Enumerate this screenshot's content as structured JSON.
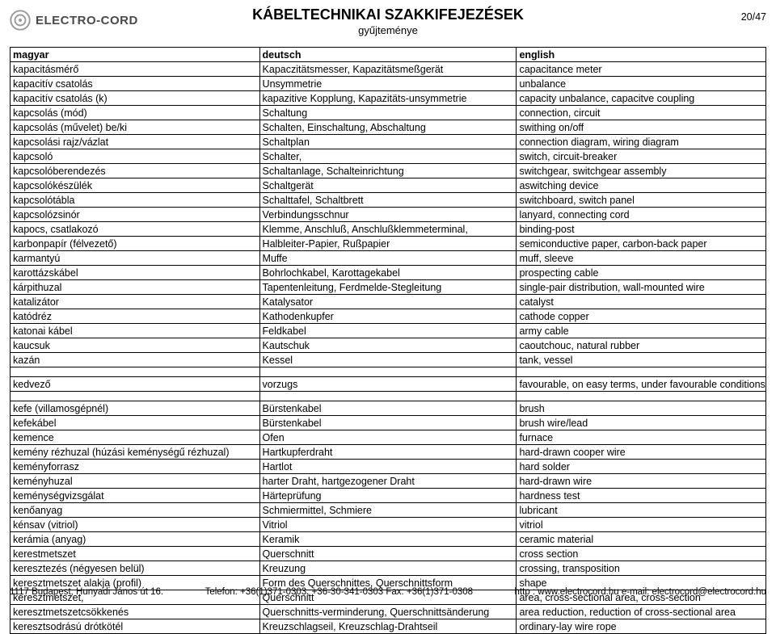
{
  "header": {
    "logo_text": "ELECTRO-CORD",
    "title": "KÁBELTECHNIKAI SZAKKIFEJEZÉSEK",
    "subtitle": "gyűjteménye",
    "page": "20/47"
  },
  "table": {
    "columns": [
      "magyar",
      "deutsch",
      "english"
    ],
    "rows_block1": [
      [
        "kapacitásmérő",
        "Kapaczitätsmesser, Kapazitätsmeßgerät",
        "capacitance meter"
      ],
      [
        "kapacitív csatolás",
        "Unsymmetrie",
        "unbalance"
      ],
      [
        "kapacitív csatolás (k)",
        "kapazitive Kopplung, Kapazitäts-unsymmetrie",
        "capacity unbalance, capacitve coupling"
      ],
      [
        "kapcsolás (mód)",
        "Schaltung",
        "connection, circuit"
      ],
      [
        "kapcsolás (művelet) be/ki",
        "Schalten, Einschaltung, Abschaltung",
        "swithing on/off"
      ],
      [
        "kapcsolási rajz/vázlat",
        "Schaltplan",
        "connection diagram, wiring diagram"
      ],
      [
        "kapcsoló",
        "Schalter,",
        "switch, circuit-breaker"
      ],
      [
        "kapcsolóberendezés",
        "Schaltanlage, Schalteinrichtung",
        "switchgear, switchgear assembly"
      ],
      [
        "kapcsolókészülék",
        "Schaltgerät",
        "aswitching device"
      ],
      [
        "kapcsolótábla",
        "Schalttafel, Schaltbrett",
        "switchboard, switch panel"
      ],
      [
        "kapcsolózsinór",
        "Verbindungsschnur",
        "lanyard, connecting cord"
      ],
      [
        "kapocs, csatlakozó",
        "Klemme, Anschluß, Anschlußklemmeterminal,",
        " binding-post"
      ],
      [
        "karbonpapír (félvezető)",
        "Halbleiter-Papier, Rußpapier",
        "semiconductive paper, carbon-back paper"
      ],
      [
        "karmantyú",
        "Muffe",
        "muff, sleeve"
      ],
      [
        "karottázskábel",
        "Bohrlochkabel, Karottagekabel",
        "prospecting cable"
      ],
      [
        "kárpithuzal",
        "Tapentenleitung, Ferdmelde-Stegleitung",
        "single-pair distribution, wall-mounted wire"
      ],
      [
        "katalizátor",
        "Katalysator",
        "catalyst"
      ],
      [
        "katódréz",
        "Kathodenkupfer",
        "cathode copper"
      ],
      [
        "katonai kábel",
        "Feldkabel",
        "army cable"
      ],
      [
        "kaucsuk",
        "Kautschuk",
        "caoutchouc, natural rubber"
      ],
      [
        "kazán",
        "Kessel",
        "tank, vessel"
      ]
    ],
    "rows_block2": [
      [
        "kedvező",
        "vorzugs",
        "favourable, on easy terms, under favourable conditions"
      ]
    ],
    "rows_block3": [
      [
        "kefe (villamosgépnél)",
        "Bürstenkabel",
        "brush"
      ],
      [
        "kefekábel",
        "Bürstenkabel",
        "brush wire/lead"
      ],
      [
        "kemence",
        "Ofen",
        "furnace"
      ],
      [
        "kemény rézhuzal (húzási keménységű rézhuzal)",
        "Hartkupferdraht",
        "hard-drawn cooper wire"
      ],
      [
        "keményforrasz",
        "Hartlot",
        "hard solder"
      ],
      [
        "keményhuzal",
        "harter Draht, hartgezogener Draht",
        "hard-drawn wire"
      ],
      [
        "keménységvizsgálat",
        "Härteprüfung",
        "hardness test"
      ],
      [
        "kenőanyag",
        "Schmiermittel, Schmiere",
        "lubricant"
      ],
      [
        "kénsav (vitriol)",
        "Vitriol",
        "vitriol"
      ],
      [
        "kerámia (anyag)",
        "Keramik",
        "ceramic material"
      ],
      [
        "kerestmetszet",
        "Querschnitt",
        "cross section"
      ],
      [
        "keresztezés (négyesen belül)",
        "Kreuzung",
        "crossing, transposition"
      ],
      [
        "keresztmetszet alakja (profil)",
        "Form des Querschnittes, Querschnittsform",
        "shape"
      ],
      [
        "keresztmetszet,",
        "Querschnitt",
        "area, cross-sectional area, cross-section"
      ],
      [
        "keresztmetszetcsökkenés",
        "Querschnitts-verminderung, Querschnittsänderung",
        "area reduction, reduction of cross-sectional area"
      ],
      [
        "keresztsodrású drótkötél",
        "Kreuzschlagseil, Kreuzschlag-Drahtseil",
        "ordinary-lay wire rope"
      ]
    ]
  },
  "footer": {
    "address": "1117 Budapest, Hunyadi János út 16.",
    "phone": "Telefon: +36(1)371-0303, +36-30-341-0303 Fax: +36(1)371-0308",
    "web": "http : www.electrocord.hu  e-mail: electrocord@electrocord.hu"
  },
  "style": {
    "background": "#ffffff",
    "text_color": "#000000",
    "border_color": "#000000",
    "logo_fill": "#9a9a9a",
    "font_family": "Arial",
    "body_fontsize": 12.5,
    "title_fontsize": 18,
    "footer_fontsize": 11.5
  }
}
